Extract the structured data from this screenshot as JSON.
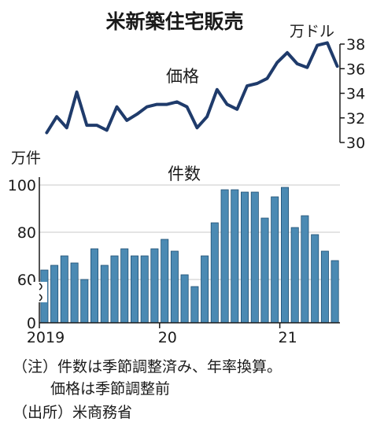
{
  "chart_data": [
    {
      "type": "line",
      "title": "米新築住宅販売",
      "label": "価格",
      "unit": "万ドル",
      "ylim": [
        30,
        38
      ],
      "yticks": [
        30,
        32,
        34,
        36,
        38
      ],
      "color": "#1f3b6b",
      "x_range": [
        "2019-01",
        "2021-06"
      ],
      "x": [
        "2019-01",
        "2019-02",
        "2019-03",
        "2019-04",
        "2019-05",
        "2019-06",
        "2019-07",
        "2019-08",
        "2019-09",
        "2019-10",
        "2019-11",
        "2019-12",
        "2020-01",
        "2020-02",
        "2020-03",
        "2020-04",
        "2020-05",
        "2020-06",
        "2020-07",
        "2020-08",
        "2020-09",
        "2020-10",
        "2020-11",
        "2020-12",
        "2021-01",
        "2021-02",
        "2021-03",
        "2021-04",
        "2021-05",
        "2021-06"
      ],
      "values": [
        30.8,
        32.1,
        31.2,
        34.1,
        31.4,
        31.4,
        31.0,
        32.9,
        31.8,
        32.3,
        32.9,
        33.1,
        33.1,
        33.3,
        32.9,
        31.2,
        32.1,
        34.3,
        33.1,
        32.7,
        34.6,
        34.8,
        35.2,
        36.5,
        37.3,
        36.4,
        36.1,
        37.9,
        38.1,
        36.2
      ]
    },
    {
      "type": "bar",
      "label": "件数",
      "unit": "万件",
      "ylim": [
        0,
        100
      ],
      "axis_break": [
        0,
        50
      ],
      "yticks": [
        0,
        60,
        80,
        100
      ],
      "color": "#4b8ab3",
      "x_ticks": [
        "2019",
        "20",
        "21"
      ],
      "x": [
        "2019-01",
        "2019-02",
        "2019-03",
        "2019-04",
        "2019-05",
        "2019-06",
        "2019-07",
        "2019-08",
        "2019-09",
        "2019-10",
        "2019-11",
        "2019-12",
        "2020-01",
        "2020-02",
        "2020-03",
        "2020-04",
        "2020-05",
        "2020-06",
        "2020-07",
        "2020-08",
        "2020-09",
        "2020-10",
        "2020-11",
        "2020-12",
        "2021-01",
        "2021-02",
        "2021-03",
        "2021-04",
        "2021-05",
        "2021-06"
      ],
      "values": [
        64,
        66,
        70,
        67,
        60,
        73,
        66,
        70,
        73,
        70,
        70,
        73,
        77,
        72,
        62,
        57,
        70,
        84,
        98,
        98,
        97,
        97,
        86,
        95,
        99,
        82,
        87,
        79,
        72,
        68
      ]
    }
  ],
  "notes": {
    "line1": "（注）件数は季節調整済み、年率換算。",
    "line2": "価格は季節調整前",
    "source": "（出所）米商務省"
  }
}
